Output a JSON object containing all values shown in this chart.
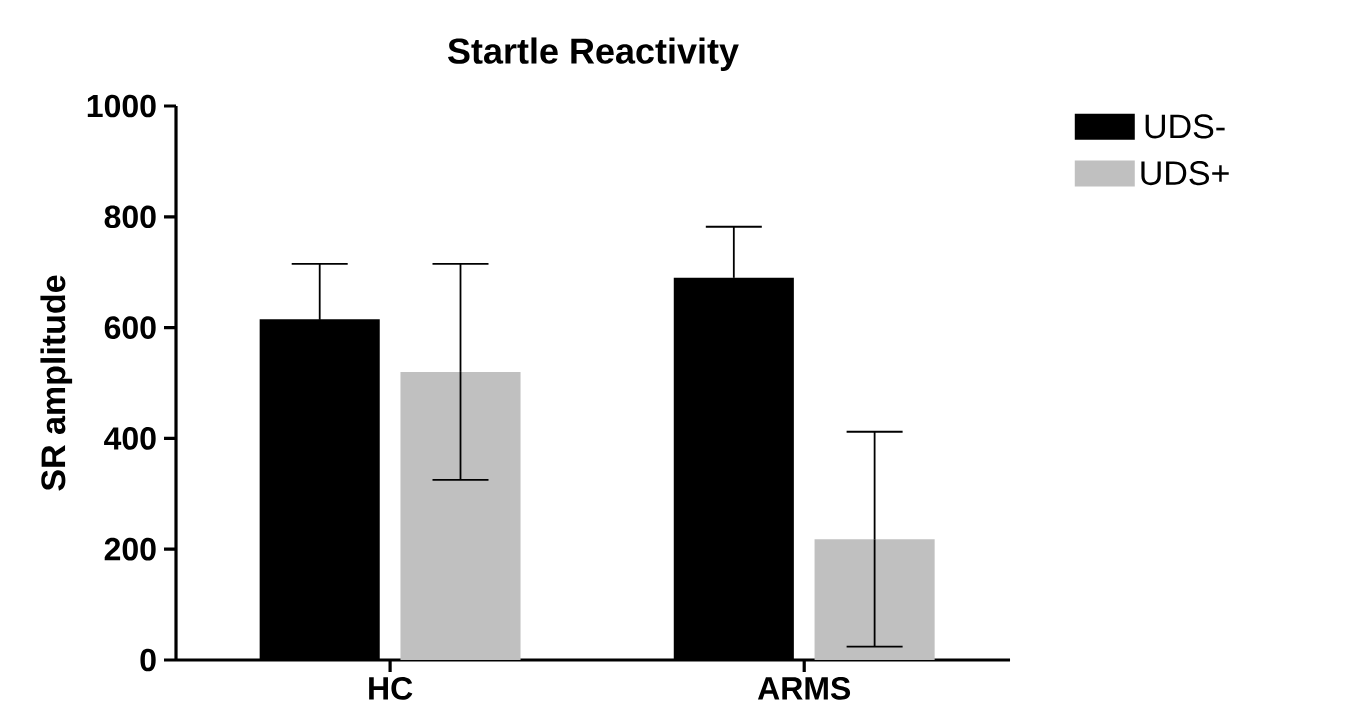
{
  "chart_data": {
    "type": "bar",
    "title": "Startle Reactivity",
    "ylabel": "SR amplitude",
    "categories": [
      "HC",
      "ARMS"
    ],
    "series": [
      {
        "name": "UDS-",
        "color": "#000000",
        "values": [
          615,
          690
        ],
        "errors": [
          100,
          92
        ]
      },
      {
        "name": "UDS+",
        "color": "#c0c0c0",
        "values": [
          520,
          218
        ],
        "errors": [
          195,
          194
        ]
      }
    ],
    "ylim": [
      0,
      1000
    ],
    "yticks": [
      0,
      200,
      400,
      600,
      800,
      1000
    ],
    "legend": "top right",
    "grid": false
  }
}
